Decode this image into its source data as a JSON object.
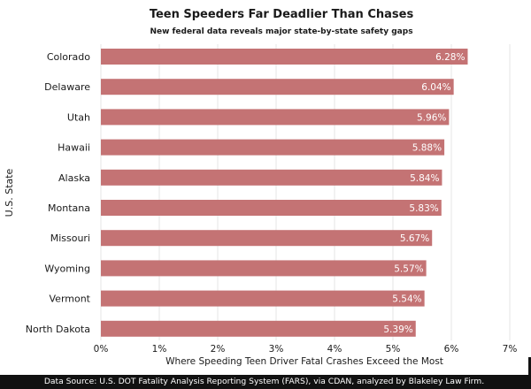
{
  "chart_data": {
    "type": "bar",
    "orientation": "horizontal",
    "title": "Teen Speeders Far Deadlier Than Chases",
    "subtitle": "New federal data reveals major state-by-state safety gaps",
    "xlabel": "Where Speeding Teen Driver Fatal Crashes Exceed the Most",
    "ylabel": "U.S. State",
    "categories": [
      "Colorado",
      "Delaware",
      "Utah",
      "Hawaii",
      "Alaska",
      "Montana",
      "Missouri",
      "Wyoming",
      "Vermont",
      "North Dakota"
    ],
    "values": [
      6.28,
      6.04,
      5.96,
      5.88,
      5.84,
      5.83,
      5.67,
      5.57,
      5.54,
      5.39
    ],
    "data_labels": [
      "6.28%",
      "6.04%",
      "5.96%",
      "5.88%",
      "5.84%",
      "5.83%",
      "5.67%",
      "5.57%",
      "5.54%",
      "5.39%"
    ],
    "xlim": [
      0,
      7
    ],
    "xticks": [
      0,
      1,
      2,
      3,
      4,
      5,
      6,
      7
    ],
    "xtick_labels": [
      "0%",
      "1%",
      "2%",
      "3%",
      "4%",
      "5%",
      "6%",
      "7%"
    ],
    "grid": true,
    "bar_color": "#c47374",
    "label_color": "#ffffff",
    "grid_color": "#e6e6e6"
  },
  "footer": {
    "source": "Data Source: U.S. DOT Fatality Analysis Reporting System (FARS), via CDAN, analyzed by Blakeley Law Firm."
  }
}
